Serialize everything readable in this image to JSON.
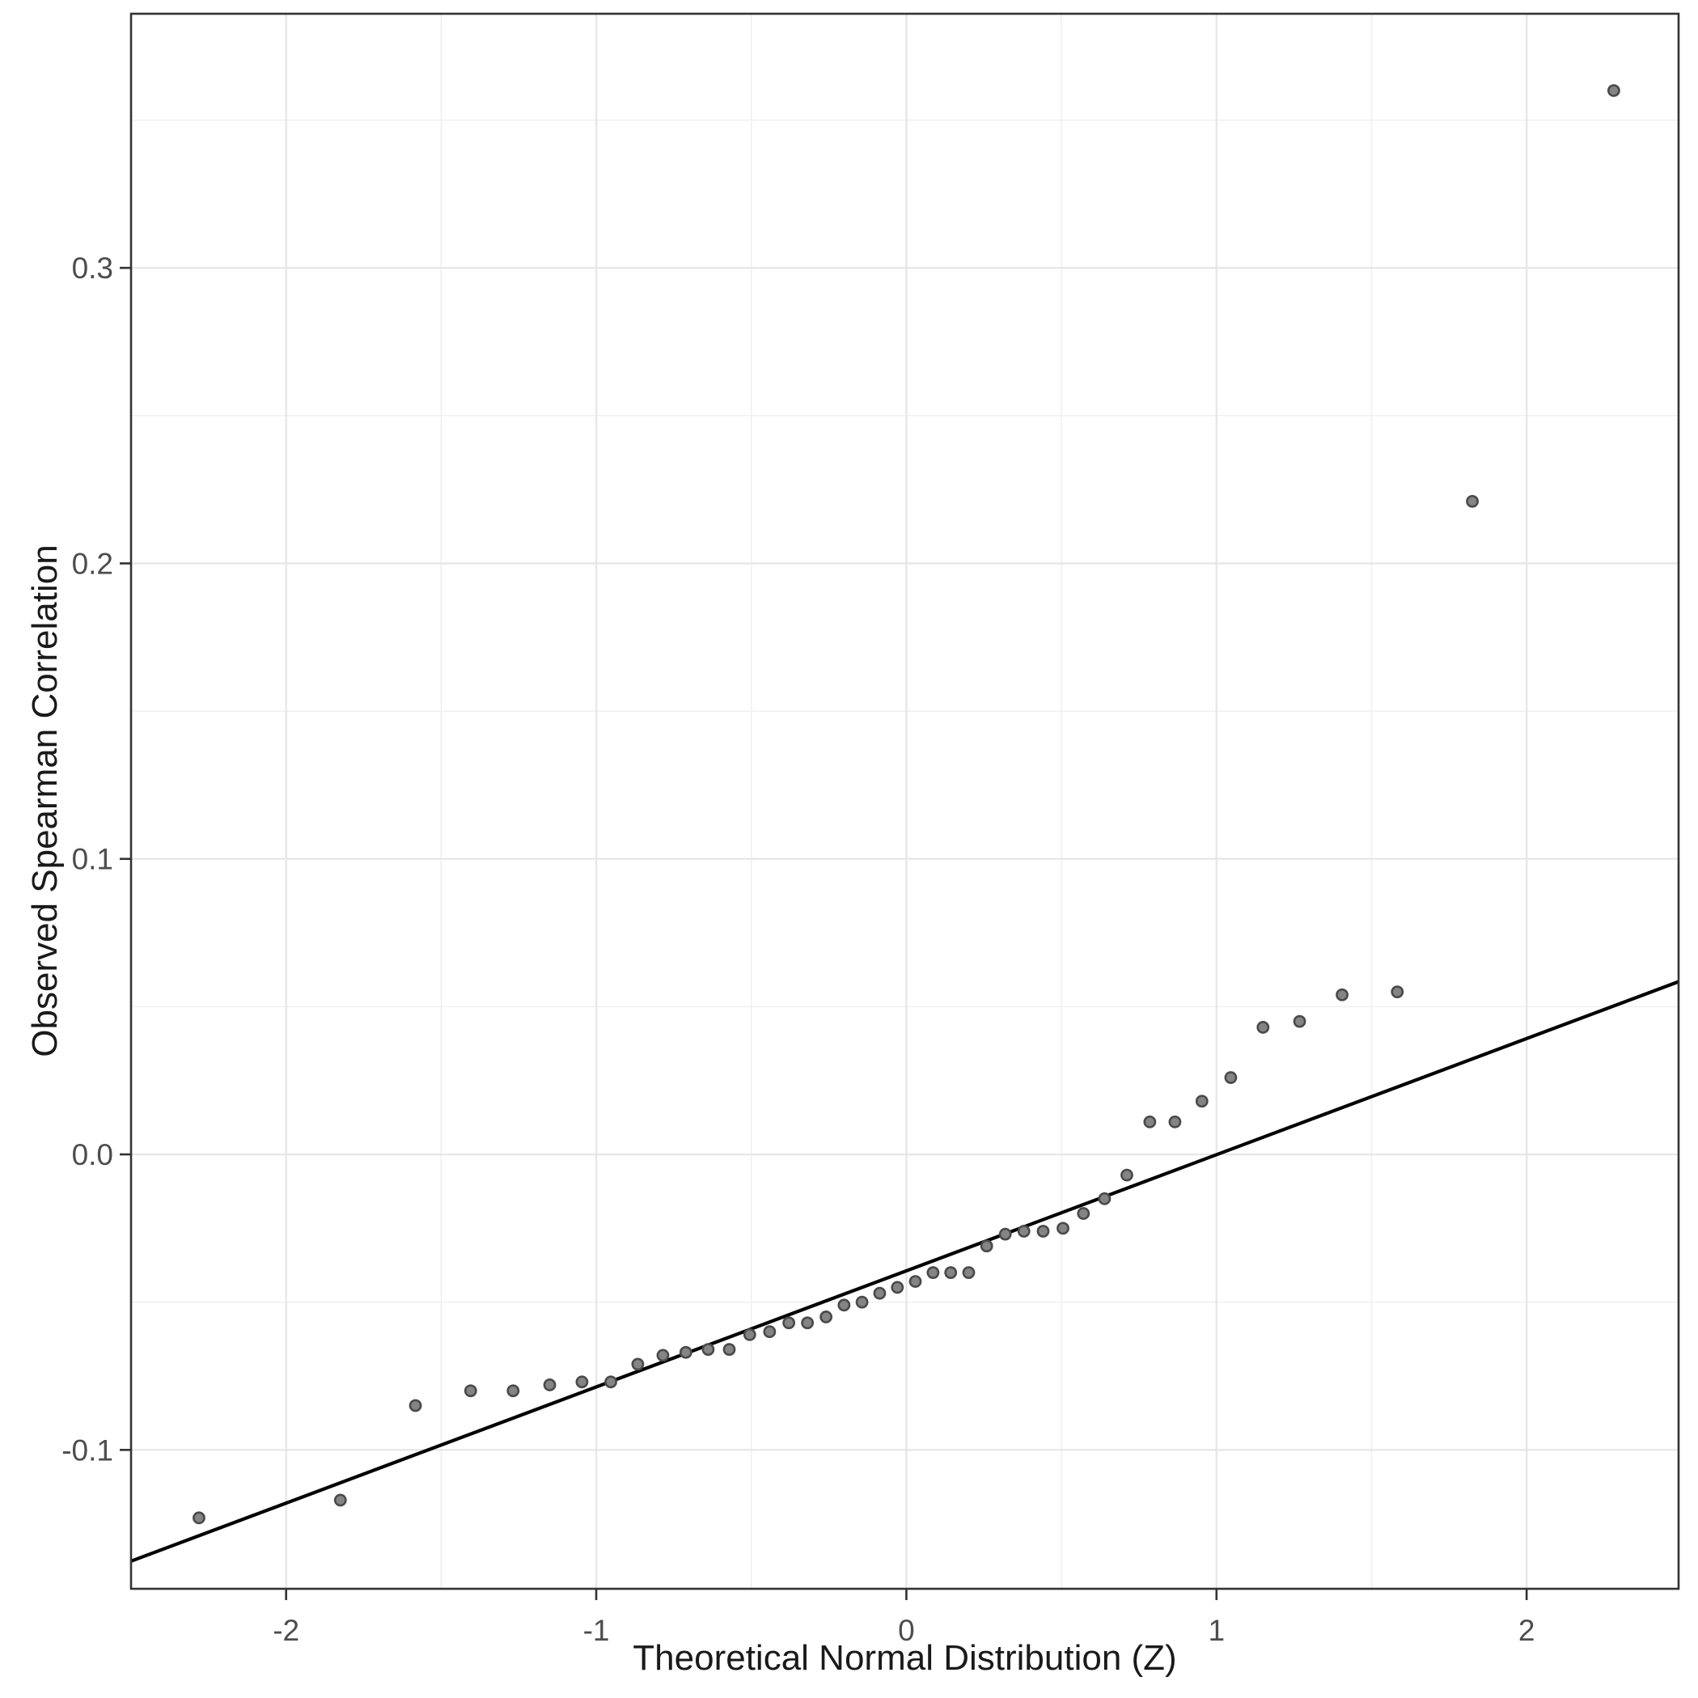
{
  "chart_data": {
    "type": "scatter",
    "title": "",
    "xlabel": "Theoretical Normal Distribution (Z)",
    "ylabel": "Observed Spearman Correlation",
    "xlim": [
      -2.5,
      2.49
    ],
    "ylim": [
      -0.147,
      0.386
    ],
    "grid": true,
    "legend": "none",
    "x_major_ticks": [
      -2,
      -1,
      0,
      1,
      2
    ],
    "x_tick_labels": [
      "-2",
      "-1",
      "0",
      "1",
      "2"
    ],
    "x_minor_ticks": [
      -2.5,
      -1.5,
      -0.5,
      0.5,
      1.5
    ],
    "y_major_ticks": [
      -0.1,
      0.0,
      0.1,
      0.2,
      0.3
    ],
    "y_tick_labels": [
      "-0.1",
      "0.0",
      "0.1",
      "0.2",
      "0.3"
    ],
    "y_minor_ticks": [
      -0.05,
      0.05,
      0.15,
      0.25,
      0.35
    ],
    "points": [
      [
        -2.281,
        -0.123
      ],
      [
        -1.825,
        -0.117
      ],
      [
        -1.583,
        -0.085
      ],
      [
        -1.405,
        -0.08
      ],
      [
        -1.268,
        -0.08
      ],
      [
        -1.15,
        -0.078
      ],
      [
        -1.046,
        -0.077
      ],
      [
        -0.953,
        -0.077
      ],
      [
        -0.866,
        -0.071
      ],
      [
        -0.785,
        -0.068
      ],
      [
        -0.711,
        -0.067
      ],
      [
        -0.639,
        -0.066
      ],
      [
        -0.571,
        -0.066
      ],
      [
        -0.505,
        -0.061
      ],
      [
        -0.441,
        -0.06
      ],
      [
        -0.379,
        -0.057
      ],
      [
        -0.319,
        -0.057
      ],
      [
        -0.259,
        -0.055
      ],
      [
        -0.201,
        -0.051
      ],
      [
        -0.143,
        -0.05
      ],
      [
        -0.086,
        -0.047
      ],
      [
        -0.029,
        -0.045
      ],
      [
        0.029,
        -0.043
      ],
      [
        0.086,
        -0.04
      ],
      [
        0.143,
        -0.04
      ],
      [
        0.201,
        -0.04
      ],
      [
        0.259,
        -0.031
      ],
      [
        0.319,
        -0.027
      ],
      [
        0.379,
        -0.026
      ],
      [
        0.441,
        -0.026
      ],
      [
        0.505,
        -0.025
      ],
      [
        0.571,
        -0.02
      ],
      [
        0.639,
        -0.015
      ],
      [
        0.711,
        -0.007
      ],
      [
        0.785,
        0.011
      ],
      [
        0.866,
        0.011
      ],
      [
        0.953,
        0.018
      ],
      [
        1.046,
        0.026
      ],
      [
        1.15,
        0.043
      ],
      [
        1.268,
        0.045
      ],
      [
        1.405,
        0.054
      ],
      [
        1.583,
        0.055
      ],
      [
        1.825,
        0.221
      ],
      [
        2.281,
        0.36
      ]
    ],
    "reference_line": {
      "slope": 0.0393,
      "intercept": -0.0394
    },
    "colors": {
      "point_fill": "#848484",
      "point_stroke": "#4a4a4a",
      "reference_line": "#000000",
      "grid_major": "#e7e7e7",
      "grid_minor": "#f0f0f0",
      "panel_border": "#333333",
      "tick_mark": "#333333",
      "tick_label": "#4d4d4d",
      "axis_title": "#1a1a1a",
      "panel_background": "#ffffff"
    }
  }
}
